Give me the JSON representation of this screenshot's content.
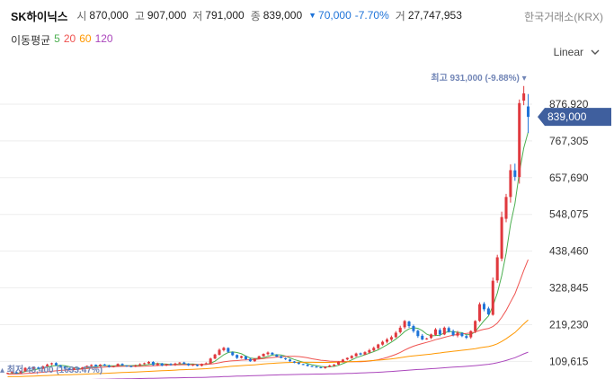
{
  "header": {
    "stock_name": "SK하이닉스",
    "open_label": "시",
    "open": "870,000",
    "high_label": "고",
    "high": "907,000",
    "low_label": "저",
    "low": "791,000",
    "close_label": "종",
    "close": "839,000",
    "change_arrow": "▼",
    "change": "70,000",
    "change_pct": "-7.70%",
    "volume_label": "거",
    "volume": "27,747,953"
  },
  "exchange": "한국거래소(KRX)",
  "ma_legend": {
    "title": "이동평균",
    "periods": [
      "5",
      "20",
      "60",
      "120"
    ]
  },
  "scale_select": {
    "value": "Linear"
  },
  "colors": {
    "up": "#e0393e",
    "down": "#1e73d8",
    "ma5": "#4caf50",
    "ma20": "#ef5350",
    "ma60": "#ff9800",
    "ma120": "#ab47bc",
    "price_tag": "#3f5f9e",
    "annotation": "#7185b6"
  },
  "chart_data": {
    "type": "candlestick",
    "y_scale": "linear",
    "ylim": [
      57000,
      1000000
    ],
    "y_ticks": [
      "876,920",
      "767,305",
      "657,690",
      "548,075",
      "438,460",
      "328,845",
      "219,230",
      "109,615"
    ],
    "y_tick_values": [
      876920,
      767305,
      657690,
      548075,
      438460,
      328845,
      219230,
      109615
    ],
    "current_price": {
      "value": 839000,
      "label": "839,000"
    },
    "high_annotation": {
      "label": "최고",
      "value": 931000,
      "text": "931,000 (-9.88%)"
    },
    "low_annotation": {
      "label": "최저",
      "value": 48400,
      "text": "48,400 (1633.47%)"
    },
    "ma_periods": [
      5,
      20,
      60,
      120
    ],
    "closes": [
      75000,
      78000,
      74000,
      80000,
      90000,
      86000,
      92000,
      88000,
      95000,
      100000,
      104000,
      98000,
      93000,
      88000,
      85000,
      90000,
      86000,
      92000,
      96000,
      99000,
      95000,
      100000,
      97000,
      93000,
      95000,
      102000,
      98000,
      96000,
      94000,
      97000,
      101000,
      104000,
      108000,
      99000,
      103000,
      97000,
      101000,
      99000,
      103000,
      106000,
      102000,
      98000,
      100000,
      96000,
      102000,
      104000,
      118000,
      130000,
      144000,
      150000,
      138000,
      128000,
      120000,
      125000,
      116000,
      110000,
      118000,
      125000,
      132000,
      136000,
      130000,
      124000,
      120000,
      116000,
      110000,
      106000,
      102000,
      100000,
      96000,
      94000,
      92000,
      90000,
      94000,
      97000,
      100000,
      108000,
      115000,
      120000,
      126000,
      133000,
      130000,
      137000,
      143000,
      150000,
      160000,
      168000,
      175000,
      182000,
      195000,
      210000,
      230000,
      215000,
      200000,
      185000,
      175000,
      178000,
      190000,
      205000,
      190000,
      210000,
      198000,
      188000,
      195000,
      185000,
      180000,
      200000,
      230000,
      280000,
      265000,
      250000,
      350000,
      420000,
      540000,
      600000,
      680000,
      660000,
      880000,
      909000,
      839000
    ]
  }
}
